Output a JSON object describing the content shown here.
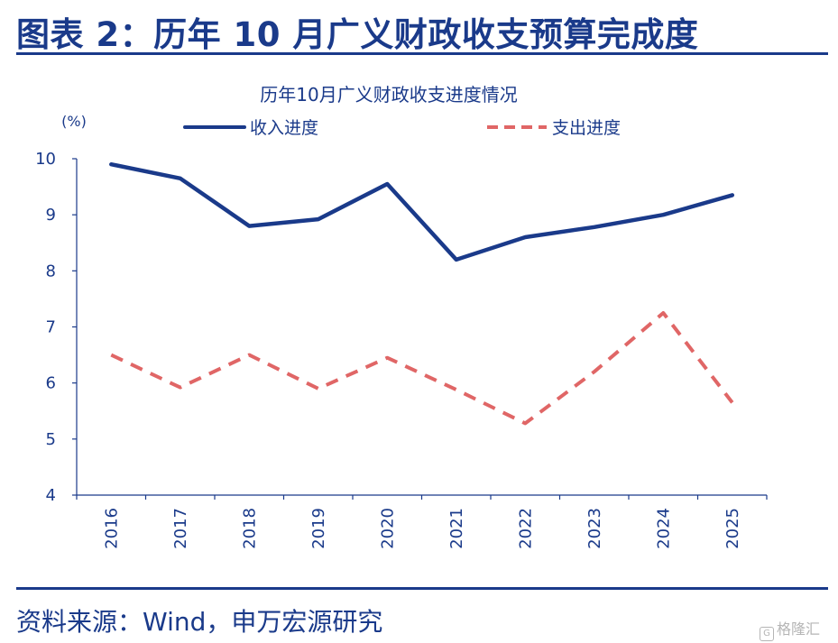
{
  "figure": {
    "title": "图表 2：历年 10 月广义财政收支预算完成度",
    "source": "资料来源：Wind，申万宏源研究",
    "watermark": "格隆汇"
  },
  "chart_data": {
    "type": "line",
    "title": "历年10月广义财政收支进度情况",
    "ylabel": "(%)",
    "xlabel": "",
    "categories": [
      "2016",
      "2017",
      "2018",
      "2019",
      "2020",
      "2021",
      "2022",
      "2023",
      "2024",
      "2025"
    ],
    "ylim": [
      4,
      10
    ],
    "yticks": [
      4,
      5,
      6,
      7,
      8,
      9,
      10
    ],
    "grid": false,
    "legend_position": "top",
    "series": [
      {
        "name": "收入进度",
        "color": "#1a3a8a",
        "style": "solid",
        "values": [
          9.9,
          9.65,
          8.8,
          8.92,
          9.55,
          8.2,
          8.6,
          8.78,
          9.0,
          9.35
        ]
      },
      {
        "name": "支出进度",
        "color": "#e06666",
        "style": "dashed",
        "values": [
          6.5,
          5.92,
          6.5,
          5.9,
          6.45,
          5.88,
          5.28,
          6.2,
          7.25,
          5.65
        ]
      }
    ]
  }
}
